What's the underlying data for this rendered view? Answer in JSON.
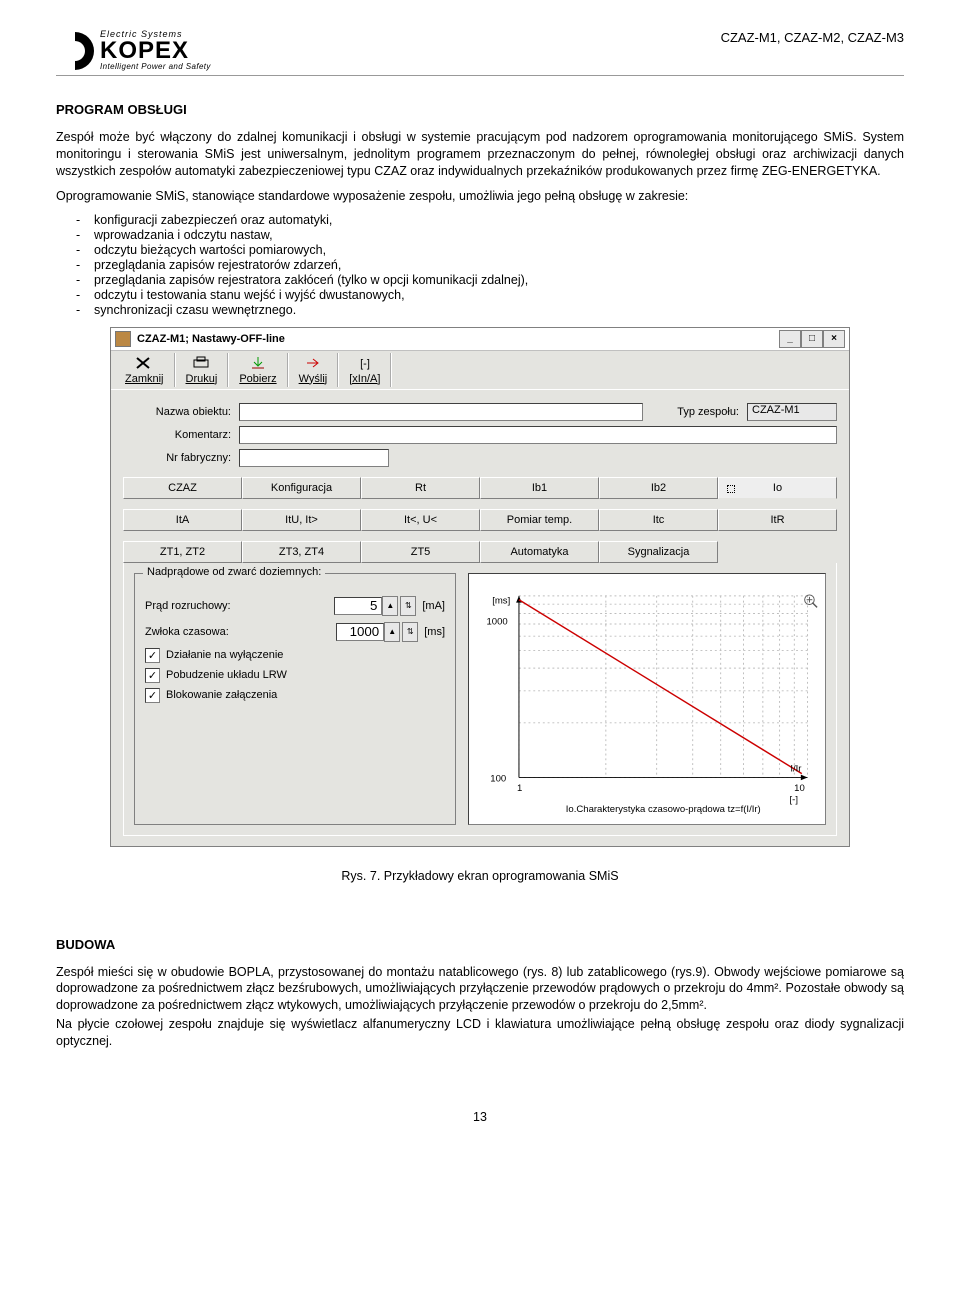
{
  "header": {
    "brand": "KOPEX",
    "tag1": "Electric  Systems",
    "tag2": "Intelligent Power and Safety",
    "right": "CZAZ-M1, CZAZ-M2, CZAZ-M3"
  },
  "section1_title": "PROGRAM OBSŁUGI",
  "para1": "Zespół może być włączony do zdalnej komunikacji i obsługi w systemie pracującym pod nadzorem oprogramowania monitorującego SMiS. System monitoringu i sterowania SMiS jest uniwersalnym, jednolitym programem przeznaczonym do pełnej, równoległej obsługi oraz archiwizacji danych wszystkich zespołów automatyki zabezpieczeniowej typu CZAZ oraz indywidualnych przekaźników produkowanych przez firmę ZEG-ENERGETYKA.",
  "para2": "Oprogramowanie SMiS, stanowiące standardowe wyposażenie zespołu, umożliwia jego pełną obsługę w zakresie:",
  "bullets": [
    "konfiguracji zabezpieczeń oraz automatyki,",
    "wprowadzania i odczytu nastaw,",
    "odczytu bieżących wartości pomiarowych,",
    "przeglądania zapisów rejestratorów zdarzeń,",
    "przeglądania zapisów rejestratora zakłóceń (tylko w opcji komunikacji zdalnej),",
    "odczytu i testowania stanu wejść i wyjść dwustanowych,",
    "synchronizacji czasu wewnętrznego."
  ],
  "window": {
    "title": "CZAZ-M1; Nastawy-OFF-line",
    "toolbar": [
      {
        "icon": "close",
        "label": "Zamknij"
      },
      {
        "icon": "print",
        "label": "Drukuj"
      },
      {
        "icon": "download",
        "label": "Pobierz"
      },
      {
        "icon": "send",
        "label": "Wyślij"
      },
      {
        "icon": "bracket",
        "label": "[xIn/A]"
      }
    ],
    "fields": {
      "nazwa_label": "Nazwa obiektu:",
      "nazwa_value": "",
      "typ_label": "Typ zespołu:",
      "typ_value": "CZAZ-M1",
      "komentarz_label": "Komentarz:",
      "komentarz_value": "",
      "nrfab_label": "Nr fabryczny:",
      "nrfab_value": ""
    },
    "tabs_row1": [
      "CZAZ",
      "Konfiguracja",
      "Rt",
      "Ib1",
      "Ib2",
      "Io"
    ],
    "tabs_row2": [
      "ItA",
      "ItU, It>",
      "It<, U<",
      "Pomiar temp.",
      "Itc",
      "ItR"
    ],
    "tabs_row3": [
      "ZT1, ZT2",
      "ZT3, ZT4",
      "ZT5",
      "Automatyka",
      "Sygnalizacja",
      ""
    ],
    "active_tab": "Io",
    "group": {
      "title": "Nadprądowe od zwarć doziemnych:",
      "prad_label": "Prąd rozruchowy:",
      "prad_value": "5",
      "prad_unit": "[mA]",
      "zwloka_label": "Zwłoka czasowa:",
      "zwloka_value": "1000",
      "zwloka_unit": "[ms]",
      "chk1": "Działanie na wyłączenie",
      "chk2": "Pobudzenie układu LRW",
      "chk3": "Blokowanie załączenia"
    },
    "chart": {
      "y_unit": "[ms]",
      "y_top": "1000",
      "y_bottom": "100",
      "x_left": "1",
      "x_right": "10",
      "x_unit_right": "I/Ir",
      "x_unit_bottom": "[-]",
      "caption": "Io.Charakterystyka czasowo-prądowa tz=f(I/Ir)",
      "line_color": "#cc0000",
      "grid_color": "#bdbdbd",
      "background_color": "#ffffff",
      "axis_color": "#000000",
      "zoom_icon_color": "#555555"
    }
  },
  "figure_caption": "Rys. 7. Przykładowy ekran oprogramowania SMiS",
  "section2_title": "BUDOWA",
  "para3": "Zespół mieści się w obudowie BOPLA, przystosowanej do montażu natablicowego (rys. 8) lub zatablicowego (rys.9). Obwody wejściowe pomiarowe są doprowadzone za pośrednictwem złącz bezśrubowych, umożliwiających przyłączenie przewodów prądowych o przekroju do 4mm². Pozostałe obwody są doprowadzone za pośrednictwem złącz wtykowych, umożliwiających przyłączenie przewodów o przekroju do 2,5mm².",
  "para4": "Na płycie czołowej zespołu znajduje się wyświetlacz alfanumeryczny LCD i klawiatura umożliwiające pełną obsługę zespołu oraz diody sygnalizacji optycznej.",
  "page_number": "13"
}
